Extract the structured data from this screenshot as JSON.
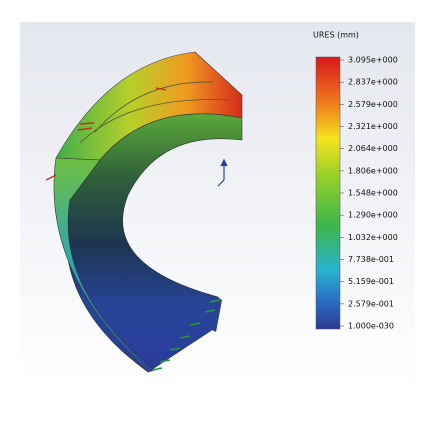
{
  "legend": {
    "title": "URES (mm)",
    "labels": [
      "3.095e+000",
      "2.837e+000",
      "2.579e+000",
      "2.321e+000",
      "2.064e+000",
      "1.806e+000",
      "1.548e+000",
      "1.290e+000",
      "1.032e+000",
      "7.738e-001",
      "5.159e-001",
      "2.579e-001",
      "1.000e-030"
    ]
  }
}
